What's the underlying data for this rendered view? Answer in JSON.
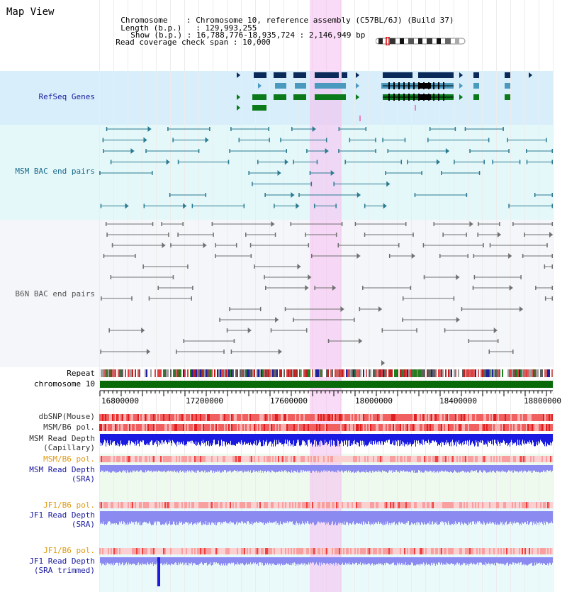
{
  "view_title": "Map View",
  "info": {
    "chromosome_label": "Chromosome    ",
    "chromosome_value": ": Chromosome 10, reference assembly (C57BL/6J) (Build 37)",
    "length_label": "Length (b.p.)",
    "length_value": ": 129,993,255",
    "show_label": "Show (b.p.)",
    "show_value": ": 16,788,776-18,935,724 : 2,146,949 bp",
    "coverage_label": "Read coverage check span",
    "coverage_value": ": 10,000"
  },
  "tracks": {
    "refseq": "RefSeq Genes",
    "msm_bac": "MSM BAC end pairs",
    "b6n_bac": "B6N BAC end pairs",
    "repeat": "Repeat",
    "chromosome": "chromosome 10",
    "dbsnp": "dbSNP(Mouse)",
    "msm_b6_pol_1": "MSM/B6 pol.",
    "msm_read_depth_cap_1": "MSM Read Depth",
    "msm_read_depth_cap_2": "(Capillary)",
    "msm_b6_pol_2": "MSM/B6 pol.",
    "msm_read_depth_sra_1": "MSM Read Depth",
    "msm_read_depth_sra_2": "(SRA)",
    "jf1_b6_pol_1": "JF1/B6 pol.",
    "jf1_read_depth_sra_1": "JF1 Read Depth",
    "jf1_read_depth_sra_2": "(SRA)",
    "jf1_b6_pol_2": "JF1/B6 pol.",
    "jf1_read_depth_trim_1": "JF1 Read Depth",
    "jf1_read_depth_trim_2": "(SRA trimmed)"
  },
  "ruler": {
    "ticks": [
      "16800000",
      "17200000",
      "17600000",
      "18000000",
      "18400000",
      "18800000"
    ]
  },
  "colors": {
    "refseq_bg": "#d8eefa",
    "msm_bac_bg": "#e4f8fa",
    "b6n_bac_bg": "#f5f6fa",
    "highlight": "#f7d7f5",
    "refseq_dark": "#0a2a5a",
    "refseq_mid": "#4a9ac0",
    "refseq_green": "#0a7a1a",
    "msm_bac": "#2a7a90",
    "b6n_bac": "#707070",
    "chrom_bar": "#0a6a0a",
    "depth_cap": "#1a1ae0",
    "depth_sra": "#8a8af0",
    "pol": "#f06060",
    "label_blue": "#1a1aa0",
    "label_teal": "#1a6a8a",
    "label_orange": "#e09a10"
  }
}
